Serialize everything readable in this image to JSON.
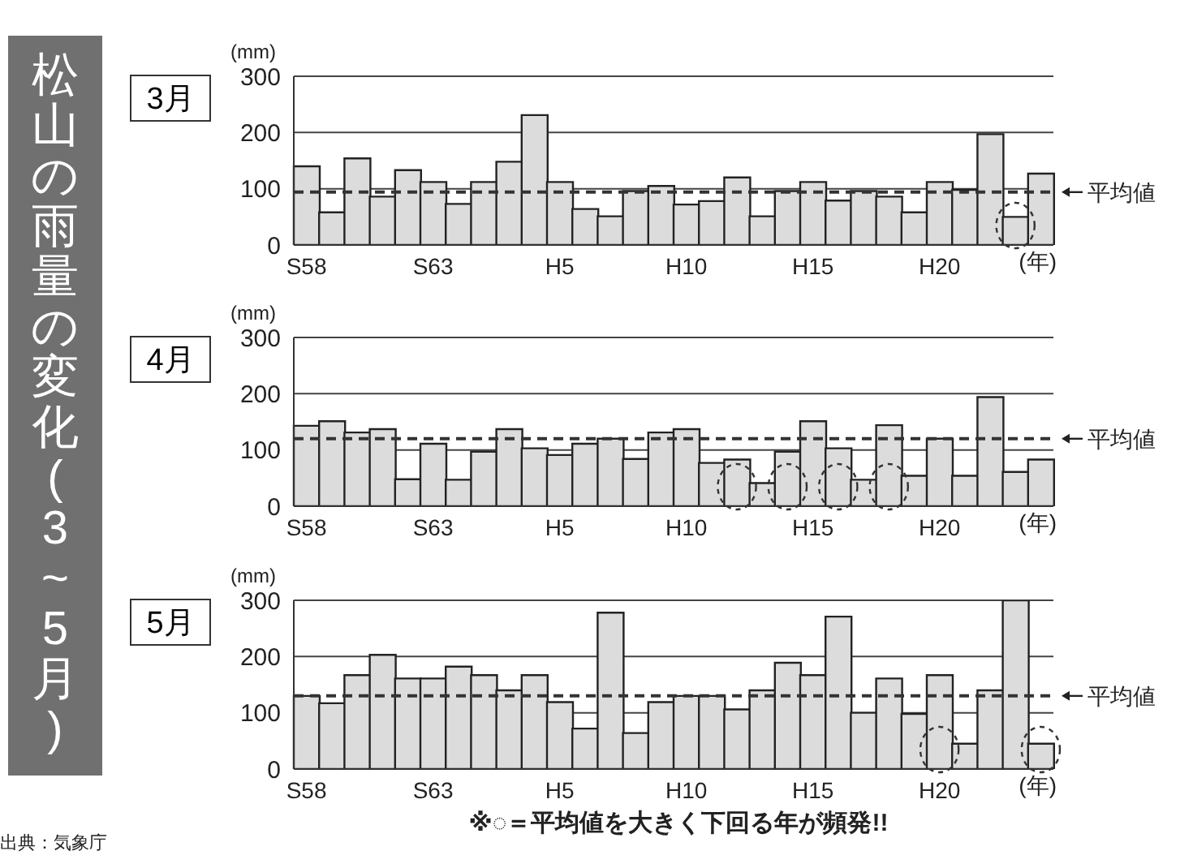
{
  "chart_data": [
    {
      "type": "other",
      "title": "松山の雨量の変化(3~5月)",
      "annotations": [
        "出典：気象庁"
      ]
    },
    {
      "type": "bar",
      "title": "3月",
      "ylabel": "(mm)",
      "xlabel": "(年)",
      "categories": [
        "S58",
        null,
        null,
        null,
        null,
        "S63",
        null,
        null,
        null,
        null,
        "H5",
        null,
        null,
        null,
        null,
        "H10",
        null,
        null,
        null,
        null,
        "H15",
        null,
        null,
        null,
        null,
        "H20",
        null,
        null,
        null,
        null
      ],
      "color": "#dcdcdc",
      "values": [
        140,
        58,
        154,
        86,
        133,
        112,
        73,
        112,
        148,
        231,
        112,
        64,
        51,
        96,
        105,
        72,
        78,
        120,
        51,
        96,
        112,
        79,
        96,
        86,
        58,
        112,
        98,
        197,
        50,
        127
      ],
      "ylim": [
        0,
        300
      ],
      "yticks": [
        0,
        100,
        200,
        300
      ],
      "grid": "y",
      "ref_lines": [
        {
          "axis": "y",
          "value": 94,
          "label": "平均値",
          "line_style": "dashed"
        }
      ]
    },
    {
      "type": "bar",
      "title": "4月",
      "ylabel": "(mm)",
      "xlabel": "(年)",
      "categories": [
        "S58",
        null,
        null,
        null,
        null,
        "S63",
        null,
        null,
        null,
        null,
        "H5",
        null,
        null,
        null,
        null,
        "H10",
        null,
        null,
        null,
        null,
        "H15",
        null,
        null,
        null,
        null,
        "H20",
        null,
        null,
        null,
        null
      ],
      "color": "#dcdcdc",
      "values": [
        143,
        151,
        131,
        137,
        48,
        111,
        47,
        97,
        137,
        103,
        91,
        111,
        120,
        84,
        131,
        137,
        77,
        83,
        41,
        97,
        151,
        103,
        47,
        144,
        54,
        120,
        54,
        194,
        61,
        83
      ],
      "ylim": [
        0,
        300
      ],
      "yticks": [
        0,
        100,
        200,
        300
      ],
      "grid": "y",
      "ref_lines": [
        {
          "axis": "y",
          "value": 120,
          "label": "平均値",
          "line_style": "dashed"
        }
      ]
    },
    {
      "type": "bar",
      "title": "5月",
      "ylabel": "(mm)",
      "xlabel": "(年)",
      "categories": [
        "S58",
        null,
        null,
        null,
        null,
        "S63",
        null,
        null,
        null,
        null,
        "H5",
        null,
        null,
        null,
        null,
        "H10",
        null,
        null,
        null,
        null,
        "H15",
        null,
        null,
        null,
        null,
        "H20",
        null,
        null,
        null,
        null
      ],
      "color": "#dcdcdc",
      "values": [
        130,
        117,
        167,
        203,
        161,
        161,
        182,
        167,
        140,
        167,
        119,
        72,
        278,
        64,
        119,
        130,
        130,
        106,
        140,
        189,
        167,
        271,
        100,
        161,
        98,
        167,
        45,
        140,
        300,
        45
      ],
      "ylim": [
        0,
        300
      ],
      "yticks": [
        0,
        100,
        200,
        300
      ],
      "grid": "y",
      "ref_lines": [
        {
          "axis": "y",
          "value": 130,
          "label": "平均値",
          "line_style": "dashed"
        }
      ],
      "annotations": [
        "※◌＝平均値を大きく下回る年が頻発!!"
      ]
    }
  ]
}
